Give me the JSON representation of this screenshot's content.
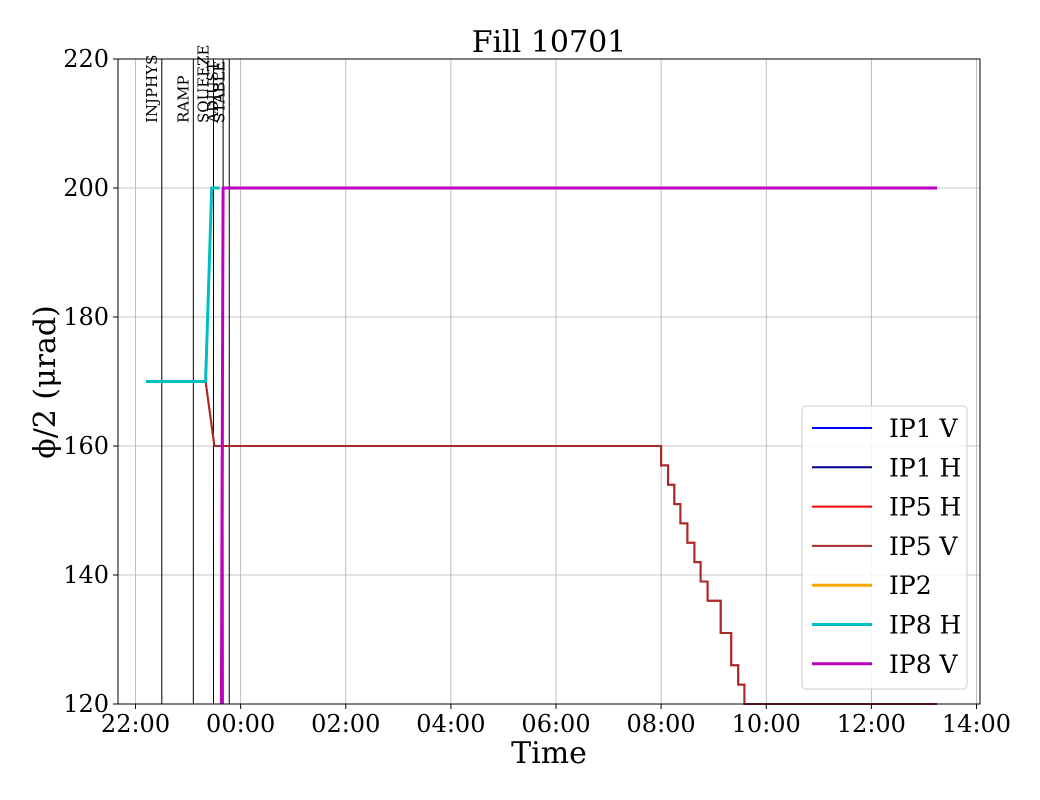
{
  "chart_data": {
    "type": "line",
    "title": "Fill 10701",
    "xlabel": "Time",
    "ylabel": "ϕ/2 (μrad)",
    "ylim": [
      120,
      220
    ],
    "xlim": [
      "21:40",
      "14:04"
    ],
    "grid": true,
    "legend_position": "lower-right",
    "x_ticks": [
      "22:00",
      "00:00",
      "02:00",
      "04:00",
      "06:00",
      "08:00",
      "10:00",
      "12:00",
      "14:00"
    ],
    "y_ticks": [
      120,
      140,
      160,
      180,
      200,
      220
    ],
    "markers": [
      {
        "label": "INJPHYS",
        "time": "22:30"
      },
      {
        "label": "RAMP",
        "time": "23:06"
      },
      {
        "label": "SQUEEZE",
        "time": "23:29"
      },
      {
        "label": "ADJUST",
        "time": "23:40"
      },
      {
        "label": "STABLE",
        "time": "23:47"
      }
    ],
    "series": [
      {
        "name": "IP1 V",
        "color": "#0000ff",
        "points": []
      },
      {
        "name": "IP1 H",
        "color": "#00008b",
        "points": []
      },
      {
        "name": "IP5 H",
        "color": "#ff0000",
        "points": [
          [
            "22:12",
            170
          ],
          [
            "23:20",
            170
          ],
          [
            "23:30",
            160
          ],
          [
            "23:40",
            160
          ],
          [
            "23:40",
            160
          ],
          [
            "08:00",
            160
          ],
          [
            "08:00",
            157
          ],
          [
            "08:08",
            157
          ],
          [
            "08:08",
            154
          ],
          [
            "08:15",
            154
          ],
          [
            "08:15",
            151
          ],
          [
            "08:22",
            151
          ],
          [
            "08:22",
            148
          ],
          [
            "08:30",
            148
          ],
          [
            "08:30",
            145
          ],
          [
            "08:38",
            145
          ],
          [
            "08:38",
            142
          ],
          [
            "08:45",
            142
          ],
          [
            "08:45",
            139
          ],
          [
            "08:53",
            139
          ],
          [
            "08:53",
            136
          ],
          [
            "09:08",
            136
          ],
          [
            "09:08",
            131
          ],
          [
            "09:20",
            131
          ],
          [
            "09:20",
            126
          ],
          [
            "09:28",
            126
          ],
          [
            "09:28",
            123
          ],
          [
            "09:35",
            123
          ],
          [
            "09:35",
            120
          ],
          [
            "13:15",
            120
          ]
        ]
      },
      {
        "name": "IP5 V",
        "color": "#a52a2a",
        "points": [
          [
            "22:12",
            170
          ],
          [
            "23:20",
            170
          ],
          [
            "23:30",
            160
          ],
          [
            "23:40",
            160
          ],
          [
            "23:40",
            160
          ],
          [
            "08:00",
            160
          ],
          [
            "08:00",
            157
          ],
          [
            "08:08",
            157
          ],
          [
            "08:08",
            154
          ],
          [
            "08:15",
            154
          ],
          [
            "08:15",
            151
          ],
          [
            "08:22",
            151
          ],
          [
            "08:22",
            148
          ],
          [
            "08:30",
            148
          ],
          [
            "08:30",
            145
          ],
          [
            "08:38",
            145
          ],
          [
            "08:38",
            142
          ],
          [
            "08:45",
            142
          ],
          [
            "08:45",
            139
          ],
          [
            "08:53",
            139
          ],
          [
            "08:53",
            136
          ],
          [
            "09:08",
            136
          ],
          [
            "09:08",
            131
          ],
          [
            "09:20",
            131
          ],
          [
            "09:20",
            126
          ],
          [
            "09:28",
            126
          ],
          [
            "09:28",
            123
          ],
          [
            "09:35",
            123
          ],
          [
            "09:35",
            120
          ],
          [
            "13:15",
            120
          ]
        ]
      },
      {
        "name": "IP2",
        "color": "#ffa500",
        "points": []
      },
      {
        "name": "IP8 H",
        "color": "#00bfbf",
        "points": [
          [
            "22:12",
            170
          ],
          [
            "23:20",
            170
          ],
          [
            "23:27",
            200
          ],
          [
            "23:36",
            200
          ]
        ]
      },
      {
        "name": "IP8 V",
        "color": "#bf00bf",
        "points": [
          [
            "23:38",
            120
          ],
          [
            "23:40",
            200
          ],
          [
            "13:15",
            200
          ]
        ]
      }
    ]
  }
}
